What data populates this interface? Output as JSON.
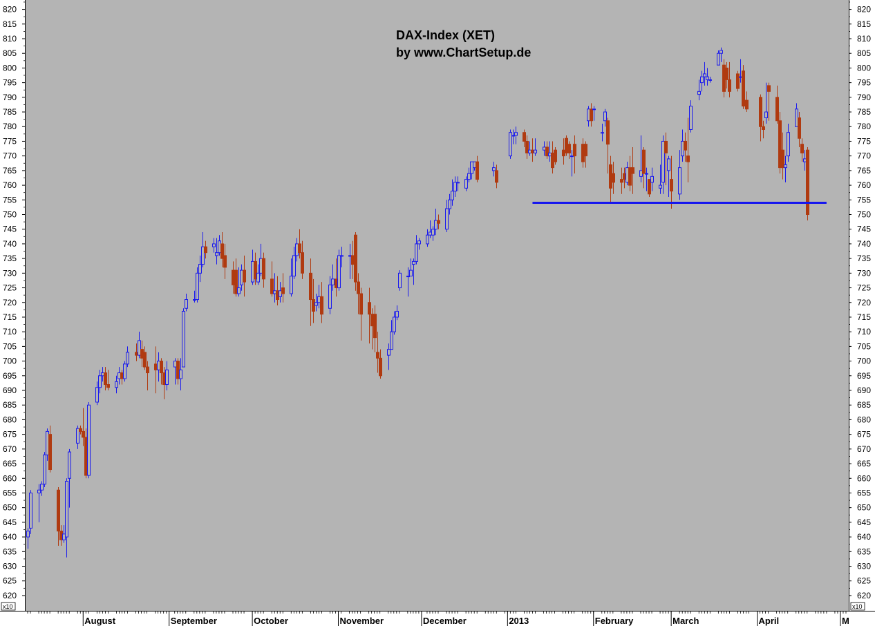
{
  "chart_data": {
    "type": "candlestick",
    "title": "DAX-Index (XET)",
    "subtitle": "by www.ChartSetup.de",
    "y_multiplier_label": "x10",
    "ylim": [
      617,
      824
    ],
    "y_ticks": [
      620,
      625,
      630,
      635,
      640,
      645,
      650,
      655,
      660,
      665,
      670,
      675,
      680,
      685,
      690,
      695,
      700,
      705,
      710,
      715,
      720,
      725,
      730,
      735,
      740,
      745,
      750,
      755,
      760,
      765,
      770,
      775,
      780,
      785,
      790,
      795,
      800,
      805,
      810,
      815,
      820
    ],
    "months": [
      {
        "label": "August",
        "start": "2012-08-01"
      },
      {
        "label": "September",
        "start": "2012-09-01"
      },
      {
        "label": "October",
        "start": "2012-10-01"
      },
      {
        "label": "November",
        "start": "2012-11-01"
      },
      {
        "label": "December",
        "start": "2012-12-01"
      },
      {
        "label": "2013",
        "start": "2013-01-01"
      },
      {
        "label": "February",
        "start": "2013-02-01"
      },
      {
        "label": "March",
        "start": "2013-03-01"
      },
      {
        "label": "April",
        "start": "2013-04-01"
      },
      {
        "label": "M",
        "start": "2013-05-01"
      }
    ],
    "x_range": [
      "2012-07-12",
      "2013-05-04"
    ],
    "support_line": {
      "value": 754,
      "from": "2013-01-10",
      "to": "2013-04-26"
    },
    "colors": {
      "background": "#b4b4b4",
      "up": "#1a1aee",
      "down": "#b03a10",
      "support": "#1515ee"
    },
    "candles": [
      [
        "2012-07-12",
        640,
        642,
        636,
        643
      ],
      [
        "2012-07-13",
        643,
        655,
        641,
        656
      ],
      [
        "2012-07-16",
        655,
        656,
        645,
        658
      ],
      [
        "2012-07-17",
        656,
        658,
        654,
        659
      ],
      [
        "2012-07-18",
        658,
        668,
        657,
        669
      ],
      [
        "2012-07-19",
        668,
        676,
        666,
        677
      ],
      [
        "2012-07-20",
        675,
        663,
        662,
        678
      ],
      [
        "2012-07-23",
        656,
        642,
        637,
        657
      ],
      [
        "2012-07-24",
        642,
        639,
        637,
        644
      ],
      [
        "2012-07-25",
        639,
        641,
        638,
        644
      ],
      [
        "2012-07-26",
        640,
        659,
        633,
        660
      ],
      [
        "2012-07-27",
        660,
        669,
        650,
        670
      ],
      [
        "2012-07-30",
        672,
        677,
        670,
        678
      ],
      [
        "2012-07-31",
        677,
        676,
        675,
        678
      ],
      [
        "2012-08-01",
        676,
        674,
        671,
        684
      ],
      [
        "2012-08-02",
        674,
        661,
        660,
        677
      ],
      [
        "2012-08-03",
        661,
        685,
        660,
        686
      ],
      [
        "2012-08-06",
        686,
        691,
        685,
        693
      ],
      [
        "2012-08-07",
        691,
        695,
        689,
        697
      ],
      [
        "2012-08-08",
        695,
        696,
        693,
        698
      ],
      [
        "2012-08-09",
        696,
        692,
        690,
        698
      ],
      [
        "2012-08-10",
        692,
        691,
        690,
        697
      ],
      [
        "2012-08-13",
        691,
        693,
        689,
        695
      ],
      [
        "2012-08-14",
        694,
        696,
        692,
        698
      ],
      [
        "2012-08-15",
        696,
        694,
        692,
        697
      ],
      [
        "2012-08-16",
        694,
        699,
        693,
        700
      ],
      [
        "2012-08-17",
        699,
        703,
        698,
        705
      ],
      [
        "2012-08-20",
        703,
        702,
        700,
        706
      ],
      [
        "2012-08-21",
        702,
        707,
        701,
        710
      ],
      [
        "2012-08-22",
        704,
        701,
        698,
        707
      ],
      [
        "2012-08-23",
        703,
        698,
        697,
        705
      ],
      [
        "2012-08-24",
        698,
        696,
        690,
        700
      ],
      [
        "2012-08-27",
        699,
        697,
        689,
        705
      ],
      [
        "2012-08-28",
        697,
        700,
        693,
        703
      ],
      [
        "2012-08-29",
        700,
        696,
        692,
        701
      ],
      [
        "2012-08-30",
        696,
        692,
        687,
        698
      ],
      [
        "2012-08-31",
        692,
        697,
        690,
        700
      ],
      [
        "2012-09-03",
        698,
        700,
        692,
        701
      ],
      [
        "2012-09-04",
        700,
        694,
        692,
        701
      ],
      [
        "2012-09-05",
        694,
        697,
        690,
        701
      ],
      [
        "2012-09-06",
        698,
        717,
        698,
        718
      ],
      [
        "2012-09-07",
        718,
        721,
        717,
        723
      ],
      [
        "2012-09-10",
        721,
        721,
        720,
        724
      ],
      [
        "2012-09-11",
        721,
        730,
        720,
        732
      ],
      [
        "2012-09-12",
        730,
        733,
        727,
        736
      ],
      [
        "2012-09-13",
        733,
        739,
        732,
        744
      ],
      [
        "2012-09-14",
        739,
        737,
        735,
        741
      ],
      [
        "2012-09-17",
        739,
        740,
        737,
        742
      ],
      [
        "2012-09-18",
        736,
        737,
        733,
        742
      ],
      [
        "2012-09-19",
        737,
        741,
        736,
        743
      ],
      [
        "2012-09-20",
        740,
        735,
        732,
        744
      ],
      [
        "2012-09-21",
        736,
        732,
        728,
        740
      ],
      [
        "2012-09-24",
        731,
        726,
        723,
        734
      ],
      [
        "2012-09-25",
        731,
        723,
        722,
        735
      ],
      [
        "2012-09-26",
        723,
        725,
        722,
        732
      ],
      [
        "2012-09-27",
        726,
        731,
        724,
        733
      ],
      [
        "2012-09-28",
        731,
        727,
        722,
        736
      ],
      [
        "2012-10-01",
        727,
        734,
        726,
        738
      ],
      [
        "2012-10-02",
        734,
        728,
        726,
        737
      ],
      [
        "2012-10-03",
        727,
        730,
        726,
        733
      ],
      [
        "2012-10-04",
        730,
        735,
        729,
        740
      ],
      [
        "2012-10-05",
        735,
        728,
        725,
        737
      ],
      [
        "2012-10-08",
        728,
        723,
        722,
        734
      ],
      [
        "2012-10-09",
        723,
        724,
        720,
        730
      ],
      [
        "2012-10-10",
        724,
        721,
        719,
        729
      ],
      [
        "2012-10-11",
        722,
        724,
        720,
        727
      ],
      [
        "2012-10-12",
        725,
        723,
        720,
        730
      ],
      [
        "2012-10-15",
        723,
        729,
        722,
        735
      ],
      [
        "2012-10-16",
        729,
        736,
        728,
        739
      ],
      [
        "2012-10-17",
        736,
        740,
        734,
        742
      ],
      [
        "2012-10-18",
        740,
        737,
        735,
        745
      ],
      [
        "2012-10-19",
        737,
        730,
        728,
        741
      ],
      [
        "2012-10-22",
        730,
        721,
        712,
        735
      ],
      [
        "2012-10-23",
        721,
        717,
        713,
        728
      ],
      [
        "2012-10-24",
        719,
        720,
        717,
        723
      ],
      [
        "2012-10-25",
        720,
        722,
        718,
        726
      ],
      [
        "2012-10-26",
        722,
        716,
        713,
        727
      ],
      [
        "2012-10-29",
        718,
        726,
        716,
        729
      ],
      [
        "2012-10-30",
        726,
        728,
        724,
        733
      ],
      [
        "2012-10-31",
        728,
        725,
        722,
        735
      ],
      [
        "2012-11-01",
        725,
        736,
        724,
        738
      ],
      [
        "2012-11-02",
        736,
        736,
        732,
        739
      ],
      [
        "2012-11-05",
        736,
        736,
        728,
        740
      ],
      [
        "2012-11-06",
        736,
        733,
        728,
        741
      ],
      [
        "2012-11-07",
        743,
        727,
        724,
        744
      ],
      [
        "2012-11-08",
        727,
        723,
        716,
        730
      ],
      [
        "2012-11-09",
        723,
        716,
        707,
        725
      ],
      [
        "2012-11-12",
        720,
        716,
        706,
        725
      ],
      [
        "2012-11-13",
        716,
        712,
        704,
        718
      ],
      [
        "2012-11-14",
        716,
        708,
        703,
        719
      ],
      [
        "2012-11-15",
        703,
        701,
        696,
        710
      ],
      [
        "2012-11-16",
        701,
        695,
        694,
        704
      ],
      [
        "2012-11-19",
        702,
        704,
        697,
        706
      ],
      [
        "2012-11-20",
        704,
        710,
        704,
        714
      ],
      [
        "2012-11-21",
        710,
        715,
        709,
        717
      ],
      [
        "2012-11-22",
        715,
        717,
        714,
        719
      ],
      [
        "2012-11-23",
        725,
        730,
        724,
        731
      ],
      [
        "2012-11-26",
        729,
        729,
        722,
        732
      ],
      [
        "2012-11-27",
        729,
        731,
        729,
        735
      ],
      [
        "2012-11-28",
        733,
        734,
        726,
        735
      ],
      [
        "2012-11-29",
        734,
        740,
        733,
        743
      ],
      [
        "2012-11-30",
        740,
        741,
        738,
        742
      ],
      [
        "2012-12-03",
        740,
        743,
        739,
        745
      ],
      [
        "2012-12-04",
        743,
        744,
        742,
        748
      ],
      [
        "2012-12-05",
        743,
        745,
        741,
        746
      ],
      [
        "2012-12-06",
        745,
        748,
        743,
        752
      ],
      [
        "2012-12-07",
        748,
        747,
        745,
        750
      ],
      [
        "2012-12-10",
        745,
        752,
        744,
        755
      ],
      [
        "2012-12-11",
        752,
        755,
        750,
        757
      ],
      [
        "2012-12-12",
        755,
        758,
        753,
        762
      ],
      [
        "2012-12-13",
        758,
        761,
        756,
        763
      ],
      [
        "2012-12-14",
        761,
        761,
        758,
        763
      ],
      [
        "2012-12-17",
        759,
        762,
        758,
        763
      ],
      [
        "2012-12-18",
        762,
        764,
        761,
        766
      ],
      [
        "2012-12-19",
        764,
        768,
        762,
        768
      ],
      [
        "2012-12-20",
        766,
        768,
        765,
        768
      ],
      [
        "2012-12-21",
        768,
        762,
        761,
        770
      ],
      [
        "2012-12-27",
        765,
        766,
        763,
        768
      ],
      [
        "2012-12-28",
        765,
        761,
        759,
        767
      ],
      [
        "2013-01-02",
        770,
        778,
        769,
        779
      ],
      [
        "2013-01-03",
        777,
        777,
        774,
        779
      ],
      [
        "2013-01-04",
        777,
        778,
        774,
        780
      ],
      [
        "2013-01-07",
        778,
        775,
        773,
        779
      ],
      [
        "2013-01-08",
        775,
        771,
        769,
        777
      ],
      [
        "2013-01-09",
        771,
        772,
        770,
        775
      ],
      [
        "2013-01-10",
        772,
        771,
        768,
        776
      ],
      [
        "2013-01-11",
        771,
        772,
        770,
        776
      ],
      [
        "2013-01-14",
        772,
        773,
        770,
        775
      ],
      [
        "2013-01-15",
        773,
        770,
        769,
        775
      ],
      [
        "2013-01-16",
        770,
        771,
        768,
        775
      ],
      [
        "2013-01-17",
        771,
        766,
        764,
        775
      ],
      [
        "2013-01-18",
        772,
        768,
        767,
        773
      ],
      [
        "2013-01-21",
        772,
        770,
        767,
        776
      ],
      [
        "2013-01-22",
        776,
        771,
        770,
        777
      ],
      [
        "2013-01-23",
        774,
        771,
        769,
        775
      ],
      [
        "2013-01-24",
        770,
        770,
        763,
        772
      ],
      [
        "2013-01-25",
        774,
        770,
        764,
        777
      ],
      [
        "2013-01-28",
        774,
        768,
        766,
        776
      ],
      [
        "2013-01-29",
        774,
        770,
        766,
        775
      ],
      [
        "2013-01-30",
        782,
        786,
        780,
        787
      ],
      [
        "2013-01-31",
        786,
        782,
        780,
        788
      ],
      [
        "2013-02-01",
        786,
        786,
        782,
        787
      ],
      [
        "2013-02-04",
        778,
        778,
        775,
        781
      ],
      [
        "2013-02-05",
        782,
        785,
        780,
        786
      ],
      [
        "2013-02-06",
        782,
        774,
        764,
        783
      ],
      [
        "2013-02-07",
        767,
        759,
        754,
        770
      ],
      [
        "2013-02-08",
        764,
        761,
        757,
        768
      ],
      [
        "2013-02-11",
        762,
        761,
        757,
        766
      ],
      [
        "2013-02-12",
        764,
        762,
        759,
        766
      ],
      [
        "2013-02-13",
        761,
        766,
        760,
        768
      ],
      [
        "2013-02-14",
        766,
        760,
        758,
        770
      ],
      [
        "2013-02-15",
        766,
        764,
        757,
        773
      ],
      [
        "2013-02-18",
        763,
        765,
        761,
        777
      ],
      [
        "2013-02-19",
        772,
        764,
        759,
        773
      ],
      [
        "2013-02-20",
        764,
        764,
        758,
        766
      ],
      [
        "2013-02-21",
        762,
        757,
        756,
        762
      ],
      [
        "2013-02-22",
        761,
        763,
        758,
        766
      ],
      [
        "2013-02-25",
        759,
        760,
        757,
        767
      ],
      [
        "2013-02-26",
        761,
        775,
        757,
        777
      ],
      [
        "2013-02-27",
        775,
        771,
        760,
        778
      ],
      [
        "2013-02-28",
        765,
        769,
        756,
        770
      ],
      [
        "2013-03-01",
        762,
        758,
        752,
        770
      ],
      [
        "2013-03-04",
        757,
        766,
        755,
        772
      ],
      [
        "2013-03-05",
        770,
        775,
        768,
        779
      ],
      [
        "2013-03-06",
        775,
        772,
        768,
        778
      ],
      [
        "2013-03-07",
        770,
        768,
        761,
        783
      ],
      [
        "2013-03-08",
        779,
        787,
        778,
        789
      ],
      [
        "2013-03-11",
        791,
        792,
        789,
        796
      ],
      [
        "2013-03-12",
        795,
        797,
        792,
        799
      ],
      [
        "2013-03-13",
        797,
        798,
        794,
        802
      ],
      [
        "2013-03-14",
        796,
        797,
        794,
        800
      ],
      [
        "2013-03-15",
        796,
        796,
        795,
        797
      ],
      [
        "2013-03-18",
        801,
        805,
        801,
        806
      ],
      [
        "2013-03-19",
        805,
        806,
        802,
        807
      ],
      [
        "2013-03-20",
        801,
        792,
        790,
        803
      ],
      [
        "2013-03-21",
        800,
        796,
        793,
        802
      ],
      [
        "2013-03-22",
        796,
        792,
        790,
        802
      ],
      [
        "2013-03-25",
        798,
        793,
        792,
        799
      ],
      [
        "2013-03-26",
        797,
        797,
        795,
        803
      ],
      [
        "2013-03-27",
        799,
        787,
        786,
        801
      ],
      [
        "2013-03-28",
        789,
        786,
        785,
        792
      ],
      [
        "2013-04-02",
        790,
        780,
        775,
        791
      ],
      [
        "2013-04-03",
        780,
        779,
        776,
        782
      ],
      [
        "2013-04-04",
        783,
        785,
        781,
        795
      ],
      [
        "2013-04-05",
        794,
        792,
        782,
        795
      ],
      [
        "2013-04-08",
        790,
        782,
        781,
        794
      ],
      [
        "2013-04-09",
        782,
        766,
        764,
        785
      ],
      [
        "2013-04-10",
        772,
        766,
        762,
        778
      ],
      [
        "2013-04-11",
        766,
        767,
        761,
        770
      ],
      [
        "2013-04-12",
        770,
        778,
        768,
        781
      ],
      [
        "2013-04-15",
        780,
        786,
        780,
        788
      ],
      [
        "2013-04-16",
        783,
        776,
        773,
        785
      ],
      [
        "2013-04-17",
        774,
        771,
        768,
        776
      ],
      [
        "2013-04-18",
        768,
        769,
        765,
        772
      ],
      [
        "2013-04-19",
        772,
        750,
        748,
        773
      ]
    ]
  }
}
